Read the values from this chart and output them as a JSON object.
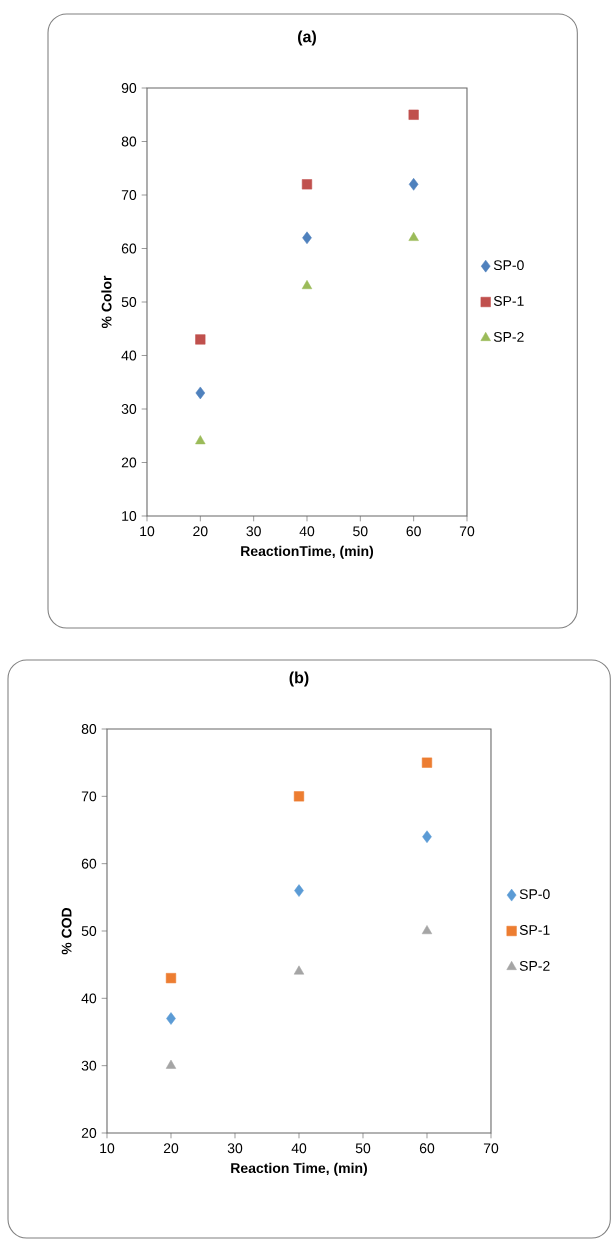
{
  "chart_data": [
    {
      "type": "scatter",
      "title": "(a)",
      "xlabel": "ReactionTime, (min)",
      "ylabel": "% Color",
      "xlim": [
        10,
        70
      ],
      "ylim": [
        10,
        90
      ],
      "xticks": [
        10,
        20,
        30,
        40,
        50,
        60,
        70
      ],
      "yticks": [
        10,
        20,
        30,
        40,
        50,
        60,
        70,
        80,
        90
      ],
      "grid": false,
      "legend": "right",
      "x": [
        20,
        40,
        60
      ],
      "series": [
        {
          "name": "SP-0",
          "color": "#4f81bd",
          "marker": "diamond",
          "values": [
            33,
            62,
            72
          ]
        },
        {
          "name": "SP-1",
          "color": "#c0504d",
          "marker": "square",
          "values": [
            43,
            72,
            85
          ]
        },
        {
          "name": "SP-2",
          "color": "#9bbb59",
          "marker": "triangle",
          "values": [
            24,
            53,
            62
          ]
        }
      ]
    },
    {
      "type": "scatter",
      "title": "(b)",
      "xlabel": "Reaction Time, (min)",
      "ylabel": "% COD",
      "xlim": [
        10,
        70
      ],
      "ylim": [
        20,
        80
      ],
      "xticks": [
        10,
        20,
        30,
        40,
        50,
        60,
        70
      ],
      "yticks": [
        20,
        30,
        40,
        50,
        60,
        70,
        80
      ],
      "grid": false,
      "legend": "right",
      "x": [
        20,
        40,
        60
      ],
      "series": [
        {
          "name": "SP-0",
          "color": "#5b9bd5",
          "marker": "diamond",
          "values": [
            37,
            56,
            64
          ]
        },
        {
          "name": "SP-1",
          "color": "#ed7d31",
          "marker": "square",
          "values": [
            43,
            70,
            75
          ]
        },
        {
          "name": "SP-2",
          "color": "#a5a5a5",
          "marker": "triangle",
          "values": [
            30,
            44,
            50
          ]
        }
      ]
    }
  ]
}
